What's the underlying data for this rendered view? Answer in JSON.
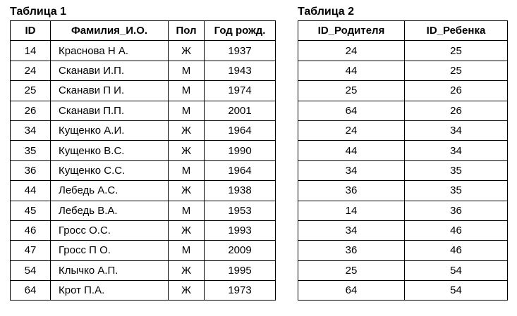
{
  "table1": {
    "caption": "Таблица 1",
    "columns": [
      "ID",
      "Фамилия_И.О.",
      "Пол",
      "Год рожд."
    ],
    "rows": [
      [
        "14",
        "Краснова Н А.",
        "Ж",
        "1937"
      ],
      [
        "24",
        "Сканави И.П.",
        "М",
        "1943"
      ],
      [
        "25",
        "Сканави П И.",
        "М",
        "1974"
      ],
      [
        "26",
        "Сканави П.П.",
        "М",
        "2001"
      ],
      [
        "34",
        "Кущенко А.И.",
        "Ж",
        "1964"
      ],
      [
        "35",
        "Кущенко В.С.",
        "Ж",
        "1990"
      ],
      [
        "36",
        "Кущенко С.С.",
        "М",
        "1964"
      ],
      [
        "44",
        "Лебедь А.С.",
        "Ж",
        "1938"
      ],
      [
        "45",
        "Лебедь В.А.",
        "М",
        "1953"
      ],
      [
        "46",
        "Гросс О.С.",
        "Ж",
        "1993"
      ],
      [
        "47",
        "Гросс П О.",
        "М",
        "2009"
      ],
      [
        "54",
        "Клычко А.П.",
        "Ж",
        "1995"
      ],
      [
        "64",
        "Крот П.А.",
        "Ж",
        "1973"
      ]
    ]
  },
  "table2": {
    "caption": "Таблица 2",
    "columns": [
      "ID_Родителя",
      "ID_Ребенка"
    ],
    "rows": [
      [
        "24",
        "25"
      ],
      [
        "44",
        "25"
      ],
      [
        "25",
        "26"
      ],
      [
        "64",
        "26"
      ],
      [
        "24",
        "34"
      ],
      [
        "44",
        "34"
      ],
      [
        "34",
        "35"
      ],
      [
        "36",
        "35"
      ],
      [
        "14",
        "36"
      ],
      [
        "34",
        "46"
      ],
      [
        "36",
        "46"
      ],
      [
        "25",
        "54"
      ],
      [
        "64",
        "54"
      ]
    ]
  }
}
